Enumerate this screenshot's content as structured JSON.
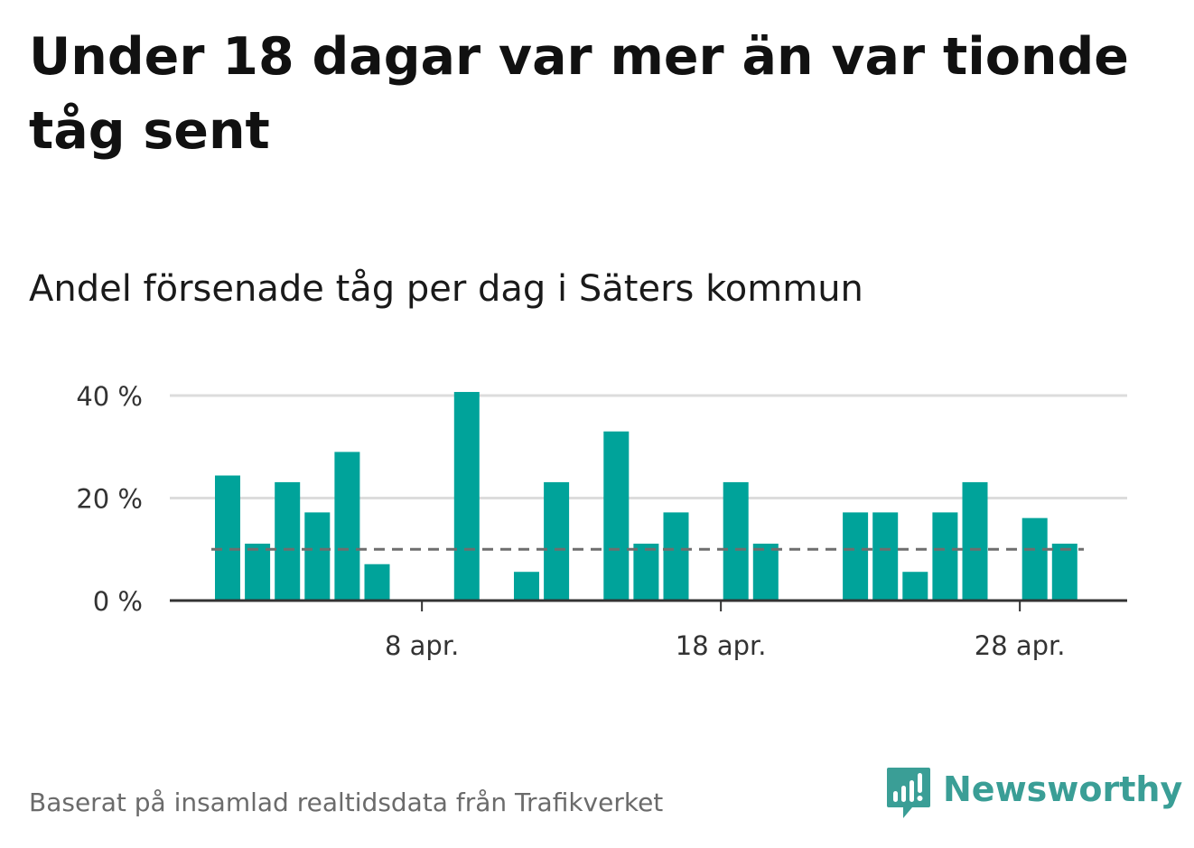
{
  "title": "Under 18 dagar var mer än var tionde tåg sent",
  "subtitle": "Andel försenade tåg per dag i Säters kommun",
  "source": "Baserat på insamlad realtidsdata från Trafikverket",
  "brand": {
    "name": "Newsworthy",
    "logo": "newsworthy-logo-icon",
    "color": "#3a9e96"
  },
  "chart_data": {
    "type": "bar",
    "title": "Andel försenade tåg per dag i Säters kommun",
    "x": [
      "2024-04-01",
      "2024-04-02",
      "2024-04-03",
      "2024-04-04",
      "2024-04-05",
      "2024-04-06",
      "2024-04-07",
      "2024-04-08",
      "2024-04-09",
      "2024-04-10",
      "2024-04-11",
      "2024-04-12",
      "2024-04-13",
      "2024-04-14",
      "2024-04-15",
      "2024-04-16",
      "2024-04-17",
      "2024-04-18",
      "2024-04-19",
      "2024-04-20",
      "2024-04-21",
      "2024-04-22",
      "2024-04-23",
      "2024-04-24",
      "2024-04-25",
      "2024-04-26",
      "2024-04-27",
      "2024-04-28",
      "2024-04-29",
      "2024-04-30"
    ],
    "values": [
      24.4,
      11.1,
      23.1,
      17.2,
      29.0,
      7.1,
      0,
      0,
      40.7,
      0,
      5.6,
      23.1,
      0,
      33.0,
      11.1,
      17.2,
      0,
      23.1,
      11.1,
      0,
      0,
      17.2,
      17.2,
      5.6,
      17.2,
      23.1,
      0,
      16.1,
      11.1,
      null
    ],
    "reference_line": {
      "value": 10,
      "style": "dashed",
      "color": "#6e6e6e"
    },
    "ylim": [
      0,
      40
    ],
    "y_ticks": [
      0,
      20,
      40
    ],
    "y_tick_labels": [
      "0 %",
      "20 %",
      "40 %"
    ],
    "x_ticks": [
      "2024-04-08",
      "2024-04-18",
      "2024-04-28"
    ],
    "x_tick_labels": [
      "8 apr.",
      "18 apr.",
      "28 apr."
    ],
    "xlabel": "",
    "ylabel": "",
    "bar_color": "#00a39a",
    "grid_color": "#dcdcdc",
    "axis_color": "#333333",
    "grid": true,
    "legend": "none"
  }
}
